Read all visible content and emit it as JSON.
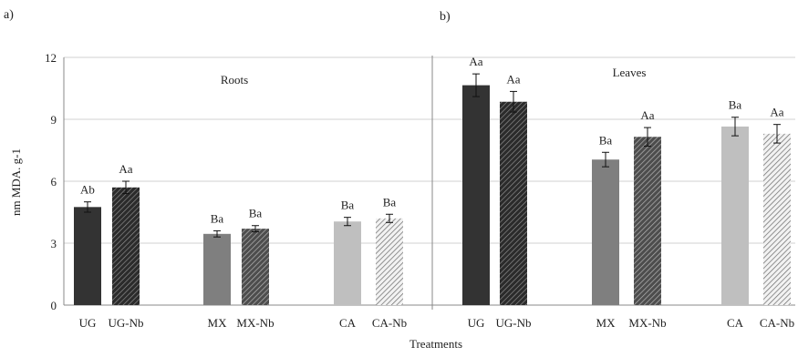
{
  "panel_labels": [
    "a)",
    "b)"
  ],
  "chart_data": {
    "type": "bar",
    "ylabel": "nm MDA. g-1",
    "xlabel": "Treatments",
    "ylim": [
      0,
      12
    ],
    "yticks": [
      0,
      3,
      6,
      9,
      12
    ],
    "grid": true,
    "panels": [
      {
        "label": "Roots",
        "categories": [
          "UG",
          "UG-Nb",
          "MX",
          "MX-Nb",
          "CA",
          "CA-Nb"
        ],
        "values": [
          4.75,
          5.7,
          3.45,
          3.7,
          4.05,
          4.2
        ],
        "errors": [
          0.25,
          0.3,
          0.15,
          0.15,
          0.2,
          0.2
        ],
        "letters": [
          "Ab",
          "Aa",
          "Ba",
          "Ba",
          "Ba",
          "Ba"
        ]
      },
      {
        "label": "Leaves",
        "categories": [
          "UG",
          "UG-Nb",
          "MX",
          "MX-Nb",
          "CA",
          "CA-Nb"
        ],
        "values": [
          10.65,
          9.85,
          7.05,
          8.15,
          8.65,
          8.3
        ],
        "errors": [
          0.55,
          0.5,
          0.35,
          0.45,
          0.45,
          0.45
        ],
        "letters": [
          "Aa",
          "Aa",
          "Ba",
          "Aa",
          "Ba",
          "Aa"
        ]
      }
    ],
    "colors": {
      "UG": "#333333",
      "UG-Nb": "#2b2b2b",
      "MX": "#7f7f7f",
      "MX-Nb": "#5a5a5a",
      "CA": "#bfbfbf",
      "CA-Nb": "#9a9a9a",
      "grid": "#d0d0d0",
      "axis": "#888888"
    },
    "hatched": [
      "UG-Nb",
      "MX-Nb",
      "CA-Nb"
    ]
  }
}
